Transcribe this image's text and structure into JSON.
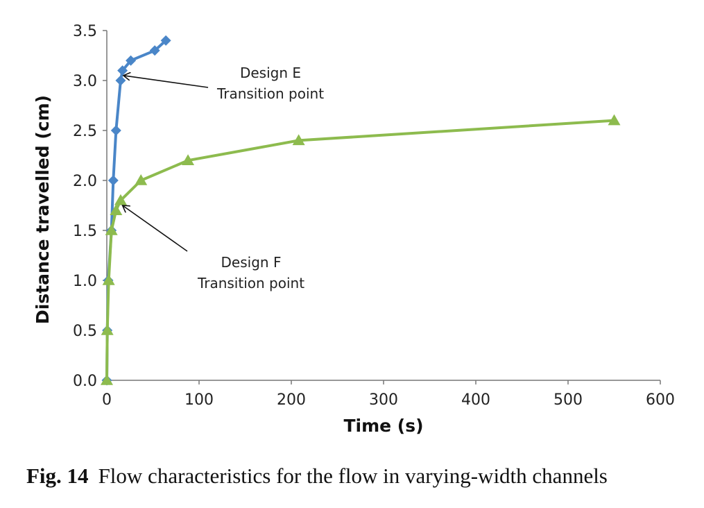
{
  "chart_data": {
    "type": "line",
    "xlabel": "Time (s)",
    "ylabel": "Distance travelled (cm)",
    "xlim": [
      0,
      600
    ],
    "ylim": [
      0,
      3.5
    ],
    "xticks": [
      0,
      100,
      200,
      300,
      400,
      500,
      600
    ],
    "yticks": [
      0.0,
      0.5,
      1.0,
      1.5,
      2.0,
      2.5,
      3.0,
      3.5
    ],
    "xtick_labels": [
      "0",
      "100",
      "200",
      "300",
      "400",
      "500",
      "600"
    ],
    "ytick_labels": [
      "0.0",
      "0.5",
      "1.0",
      "1.5",
      "2.0",
      "2.5",
      "3.0",
      "3.5"
    ],
    "grid": false,
    "series": [
      {
        "name": "Design E",
        "color": "#4a86c8",
        "marker": "diamond",
        "x": [
          0,
          0.5,
          1.5,
          5,
          7,
          10,
          15,
          17,
          26,
          52,
          64
        ],
        "y": [
          0,
          0.5,
          1.0,
          1.5,
          2.0,
          2.5,
          3.0,
          3.1,
          3.2,
          3.3,
          3.4
        ]
      },
      {
        "name": "Design F",
        "color": "#8dbb4e",
        "marker": "triangle",
        "x": [
          0,
          0.5,
          2,
          5,
          10,
          15,
          37,
          88,
          208,
          550
        ],
        "y": [
          0,
          0.5,
          1.0,
          1.5,
          1.7,
          1.8,
          2.0,
          2.2,
          2.4,
          2.6
        ]
      }
    ],
    "annotations": [
      {
        "id": "e",
        "lines": [
          "Design E",
          "Transition point"
        ],
        "target": [
          18,
          3.05
        ]
      },
      {
        "id": "f",
        "lines": [
          "Design F",
          "Transition point"
        ],
        "target": [
          17,
          1.75
        ]
      }
    ]
  },
  "caption": {
    "label": "Fig. 14",
    "text": "Flow characteristics for the flow in varying-width channels"
  }
}
